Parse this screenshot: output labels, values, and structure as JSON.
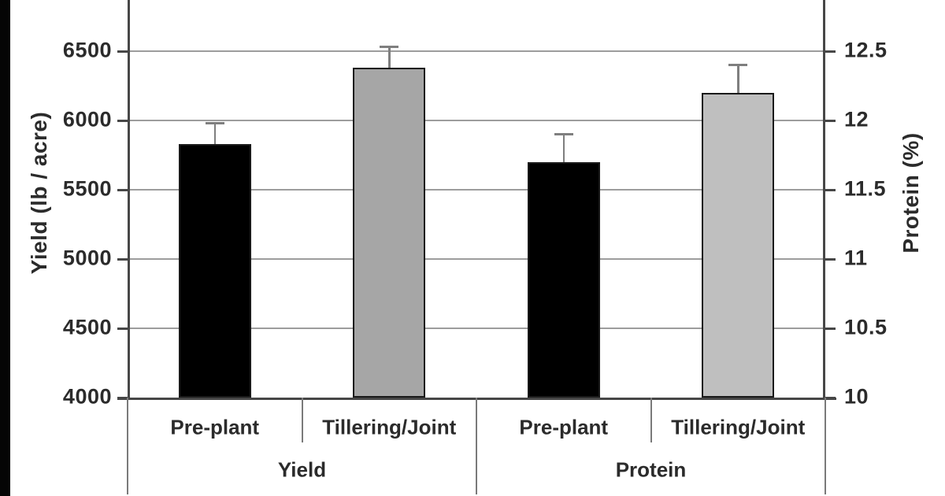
{
  "chart_data": {
    "type": "bar",
    "title": "",
    "left_axis": {
      "label": "Yield (lb / acre)",
      "min": 4000,
      "max": 6500,
      "tick_step": 500,
      "ticks": [
        4000,
        4500,
        5000,
        5500,
        6000,
        6500
      ]
    },
    "right_axis": {
      "label": "Protein (%)",
      "min": 10,
      "max": 12.5,
      "tick_step": 0.5,
      "ticks": [
        10,
        10.5,
        11,
        11.5,
        12,
        12.5
      ]
    },
    "grid": true,
    "legend": false,
    "groups": [
      {
        "label": "Yield",
        "axis": "left",
        "bars": [
          {
            "category": "Pre-plant",
            "value": 5830,
            "error_high": 5980,
            "fill": "#000000"
          },
          {
            "category": "Tillering/Joint",
            "value": 6380,
            "error_high": 6530,
            "fill": "#a6a6a6"
          }
        ]
      },
      {
        "label": "Protein",
        "axis": "right",
        "bars": [
          {
            "category": "Pre-plant",
            "value": 11.7,
            "error_high": 11.9,
            "fill": "#000000"
          },
          {
            "category": "Tillering/Joint",
            "value": 12.2,
            "error_high": 12.4,
            "fill": "#bfbfbf"
          }
        ]
      }
    ]
  },
  "colors": {
    "background": "#ffffff",
    "left_strip": "#050505",
    "text": "#2b2b2b",
    "gridline": "#9d9d9d",
    "axis_line": "#474747",
    "separator": "#7a7a7a",
    "error_bar": "#7f7f7f",
    "bar_border": "#1a1a1a"
  }
}
